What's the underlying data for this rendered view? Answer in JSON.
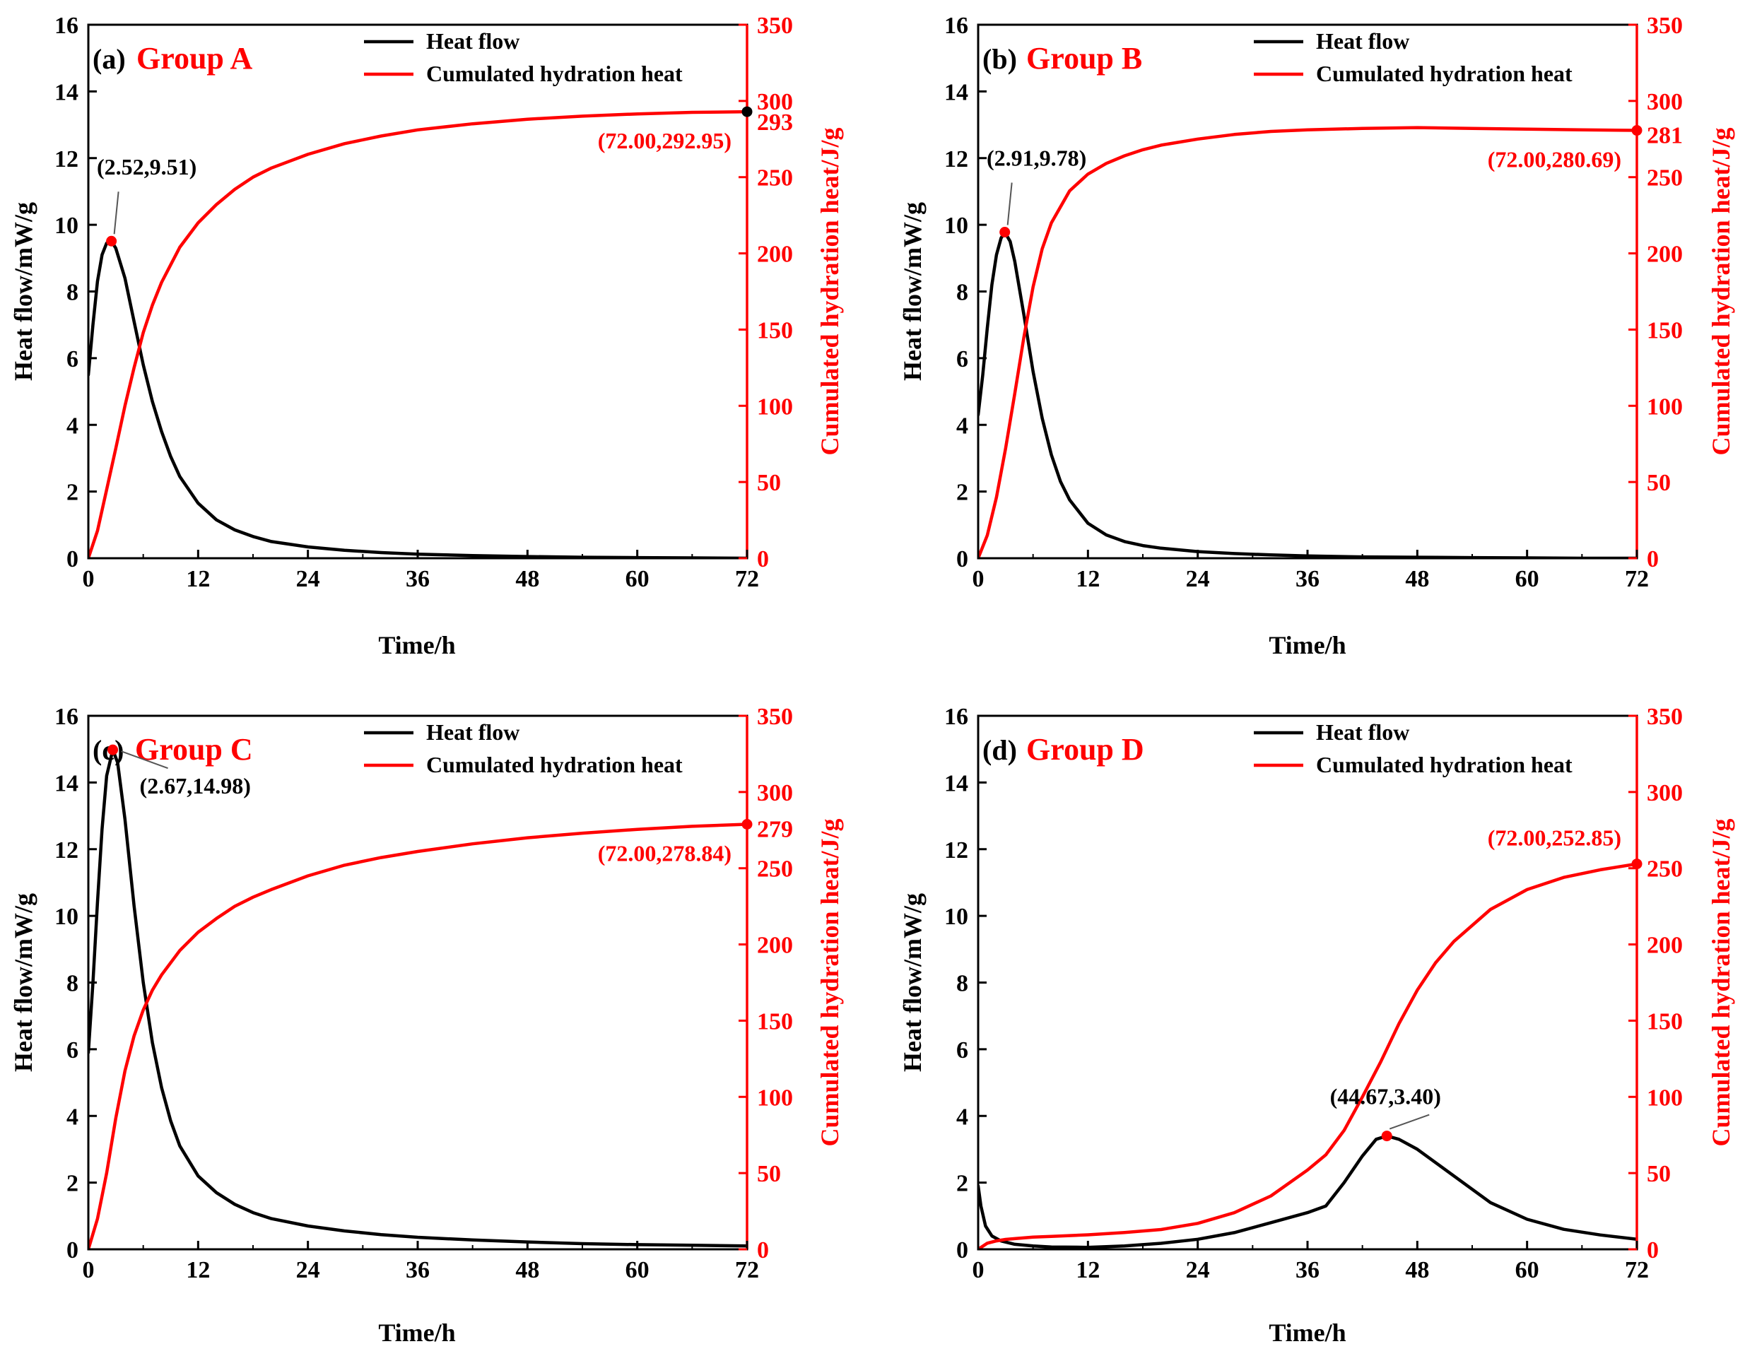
{
  "colors": {
    "heat_flow": "#000000",
    "cumulated": "#ff0000",
    "axis": "#000000"
  },
  "chart_data": [
    {
      "type": "line",
      "panel_tag": "(a)",
      "group_label": "Group A",
      "xlabel": "Time/h",
      "ylabel": "Heat flow/mW/g",
      "y2label": "Cumulated hydration heat/J/g",
      "xlim": [
        0,
        72
      ],
      "ylim": [
        0,
        16
      ],
      "y2lim": [
        0,
        350
      ],
      "xticks": [
        0,
        12,
        24,
        36,
        48,
        60,
        72
      ],
      "yticks": [
        0,
        2,
        4,
        6,
        8,
        10,
        12,
        14,
        16
      ],
      "y2ticks": [
        0,
        50,
        100,
        150,
        200,
        250,
        300,
        350
      ],
      "legend": [
        "Heat flow",
        "Cumulated hydration heat"
      ],
      "series": [
        {
          "name": "Heat flow",
          "axis": "left",
          "x": [
            0,
            0.5,
            1,
            1.5,
            2,
            2.52,
            3,
            4,
            5,
            6,
            7,
            8,
            9,
            10,
            12,
            14,
            16,
            18,
            20,
            24,
            28,
            32,
            36,
            42,
            48,
            54,
            60,
            66,
            72
          ],
          "y": [
            5.5,
            7.0,
            8.3,
            9.1,
            9.45,
            9.51,
            9.3,
            8.4,
            7.1,
            5.8,
            4.7,
            3.8,
            3.05,
            2.45,
            1.65,
            1.15,
            0.85,
            0.65,
            0.5,
            0.34,
            0.24,
            0.17,
            0.12,
            0.08,
            0.05,
            0.03,
            0.02,
            0.01,
            0.0
          ]
        },
        {
          "name": "Cumulated hydration heat",
          "axis": "right",
          "x": [
            0,
            1,
            2,
            3,
            4,
            5,
            6,
            7,
            8,
            10,
            12,
            14,
            16,
            18,
            20,
            24,
            28,
            32,
            36,
            42,
            48,
            54,
            60,
            66,
            72
          ],
          "y": [
            0,
            18,
            45,
            72,
            100,
            125,
            148,
            166,
            181,
            204,
            220,
            232,
            242,
            250,
            256,
            265,
            272,
            277,
            281,
            285,
            288,
            290,
            291.5,
            292.5,
            292.95
          ]
        }
      ],
      "annotations": [
        {
          "text": "(2.52,9.51)",
          "x": 2.52,
          "y": 9.51,
          "axis": "left"
        },
        {
          "text": "(72.00,292.95)",
          "x": 72,
          "y": 292.95,
          "axis": "right"
        }
      ],
      "end_label": "293"
    },
    {
      "type": "line",
      "panel_tag": "(b)",
      "group_label": "Group B",
      "xlabel": "Time/h",
      "ylabel": "Heat flow/mW/g",
      "y2label": "Cumulated hydration heat/J/g",
      "xlim": [
        0,
        72
      ],
      "ylim": [
        0,
        16
      ],
      "y2lim": [
        0,
        350
      ],
      "xticks": [
        0,
        12,
        24,
        36,
        48,
        60,
        72
      ],
      "yticks": [
        0,
        2,
        4,
        6,
        8,
        10,
        12,
        14,
        16
      ],
      "y2ticks": [
        0,
        50,
        100,
        150,
        200,
        250,
        300,
        350
      ],
      "legend": [
        "Heat flow",
        "Cumulated hydration heat"
      ],
      "series": [
        {
          "name": "Heat flow",
          "axis": "left",
          "x": [
            0,
            0.5,
            1,
            1.5,
            2,
            2.5,
            2.91,
            3.5,
            4,
            5,
            6,
            7,
            8,
            9,
            10,
            12,
            14,
            16,
            18,
            20,
            24,
            28,
            32,
            36,
            42,
            48,
            54,
            60,
            66,
            72
          ],
          "y": [
            4.3,
            5.5,
            6.9,
            8.2,
            9.1,
            9.6,
            9.78,
            9.5,
            8.9,
            7.3,
            5.6,
            4.2,
            3.1,
            2.3,
            1.75,
            1.05,
            0.7,
            0.5,
            0.38,
            0.3,
            0.2,
            0.14,
            0.1,
            0.07,
            0.04,
            0.03,
            0.02,
            0.01,
            0.0,
            0.0
          ]
        },
        {
          "name": "Cumulated hydration heat",
          "axis": "right",
          "x": [
            0,
            1,
            2,
            3,
            4,
            5,
            6,
            7,
            8,
            10,
            12,
            14,
            16,
            18,
            20,
            24,
            28,
            32,
            36,
            42,
            48,
            54,
            60,
            66,
            72
          ],
          "y": [
            0,
            15,
            40,
            72,
            108,
            145,
            178,
            203,
            220,
            241,
            252,
            259,
            264,
            268,
            271,
            275,
            278,
            280,
            281,
            282,
            282.5,
            282,
            281.5,
            281,
            280.69
          ]
        }
      ],
      "annotations": [
        {
          "text": "(2.91,9.78)",
          "x": 2.91,
          "y": 9.78,
          "axis": "left"
        },
        {
          "text": "(72.00,280.69)",
          "x": 72,
          "y": 280.69,
          "axis": "right"
        }
      ],
      "end_label": "281"
    },
    {
      "type": "line",
      "panel_tag": "(c)",
      "group_label": "Group C",
      "xlabel": "Time/h",
      "ylabel": "Heat flow/mW/g",
      "y2label": "Cumulated hydration heat/J/g",
      "xlim": [
        0,
        72
      ],
      "ylim": [
        0,
        16
      ],
      "y2lim": [
        0,
        350
      ],
      "xticks": [
        0,
        12,
        24,
        36,
        48,
        60,
        72
      ],
      "yticks": [
        0,
        2,
        4,
        6,
        8,
        10,
        12,
        14,
        16
      ],
      "y2ticks": [
        0,
        50,
        100,
        150,
        200,
        250,
        300,
        350
      ],
      "legend": [
        "Heat flow",
        "Cumulated hydration heat"
      ],
      "series": [
        {
          "name": "Heat flow",
          "axis": "left",
          "x": [
            0,
            0.5,
            1,
            1.5,
            2,
            2.67,
            3.2,
            4,
            5,
            6,
            7,
            8,
            9,
            10,
            12,
            14,
            16,
            18,
            20,
            24,
            28,
            32,
            36,
            42,
            48,
            54,
            60,
            66,
            72
          ],
          "y": [
            5.9,
            8.0,
            10.4,
            12.6,
            14.2,
            14.98,
            14.6,
            12.9,
            10.3,
            8.0,
            6.2,
            4.85,
            3.85,
            3.1,
            2.2,
            1.7,
            1.35,
            1.1,
            0.92,
            0.7,
            0.55,
            0.44,
            0.36,
            0.28,
            0.22,
            0.17,
            0.14,
            0.12,
            0.1
          ]
        },
        {
          "name": "Cumulated hydration heat",
          "axis": "right",
          "x": [
            0,
            1,
            2,
            3,
            4,
            5,
            6,
            7,
            8,
            10,
            12,
            14,
            16,
            18,
            20,
            24,
            28,
            32,
            36,
            42,
            48,
            54,
            60,
            66,
            72
          ],
          "y": [
            0,
            20,
            50,
            86,
            117,
            140,
            157,
            170,
            180,
            196,
            208,
            217,
            225,
            231,
            236,
            245,
            252,
            257,
            261,
            266,
            270,
            273,
            275.5,
            277.5,
            278.84
          ]
        }
      ],
      "annotations": [
        {
          "text": "(2.67,14.98)",
          "x": 2.67,
          "y": 14.98,
          "axis": "left"
        },
        {
          "text": "(72.00,278.84)",
          "x": 72,
          "y": 278.84,
          "axis": "right"
        }
      ],
      "end_label": "279"
    },
    {
      "type": "line",
      "panel_tag": "(d)",
      "group_label": "Group D",
      "xlabel": "Time/h",
      "ylabel": "Heat flow/mW/g",
      "y2label": "Cumulated hydration heat/J/g",
      "xlim": [
        0,
        72
      ],
      "ylim": [
        0,
        16
      ],
      "y2lim": [
        0,
        350
      ],
      "xticks": [
        0,
        12,
        24,
        36,
        48,
        60,
        72
      ],
      "yticks": [
        0,
        2,
        4,
        6,
        8,
        10,
        12,
        14,
        16
      ],
      "y2ticks": [
        0,
        50,
        100,
        150,
        200,
        250,
        300,
        350
      ],
      "legend": [
        "Heat flow",
        "Cumulated hydration heat"
      ],
      "series": [
        {
          "name": "Heat flow",
          "axis": "left",
          "x": [
            0,
            0.3,
            0.8,
            1.5,
            2.5,
            4,
            6,
            8,
            12,
            16,
            20,
            24,
            28,
            32,
            36,
            38,
            40,
            42,
            43.5,
            44.67,
            46,
            48,
            52,
            56,
            60,
            64,
            68,
            72
          ],
          "y": [
            1.9,
            1.3,
            0.7,
            0.4,
            0.25,
            0.15,
            0.1,
            0.07,
            0.06,
            0.1,
            0.18,
            0.3,
            0.5,
            0.8,
            1.1,
            1.3,
            2.0,
            2.8,
            3.3,
            3.4,
            3.3,
            3.0,
            2.2,
            1.4,
            0.9,
            0.6,
            0.43,
            0.3
          ]
        },
        {
          "name": "Cumulated hydration heat",
          "axis": "right",
          "x": [
            0,
            1,
            2,
            3,
            4,
            6,
            8,
            12,
            16,
            20,
            24,
            28,
            32,
            36,
            38,
            40,
            42,
            44,
            46,
            48,
            50,
            52,
            56,
            60,
            64,
            68,
            72
          ],
          "y": [
            0,
            4,
            5.5,
            6.5,
            7,
            8,
            8.5,
            9.5,
            11,
            13,
            17,
            24,
            35,
            52,
            62,
            78,
            100,
            123,
            148,
            170,
            188,
            202,
            223,
            236,
            244,
            249,
            252.85
          ]
        }
      ],
      "annotations": [
        {
          "text": "(44.67,3.40)",
          "x": 44.67,
          "y": 3.4,
          "axis": "left"
        },
        {
          "text": "(72.00,252.85)",
          "x": 72,
          "y": 252.85,
          "axis": "right"
        }
      ],
      "end_label": ""
    }
  ]
}
